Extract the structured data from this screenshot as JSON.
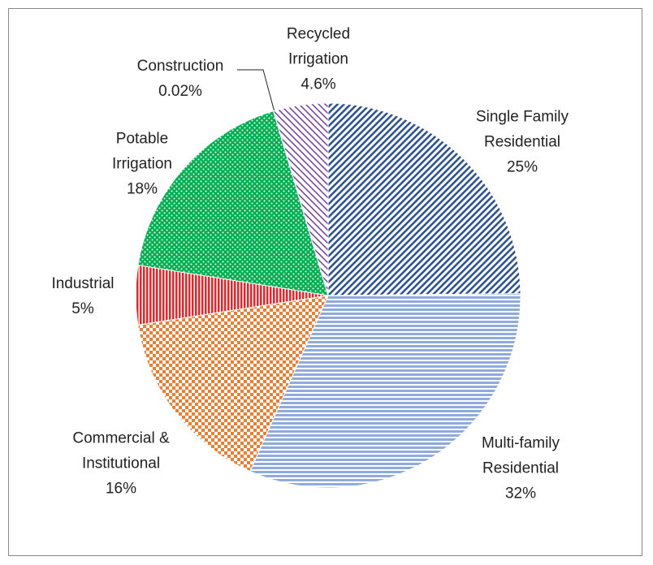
{
  "chart_data": {
    "type": "pie",
    "categories": [
      "Single Family Residential",
      "Multi-family Residential",
      "Commercial & Institutional",
      "Industrial",
      "Potable Irrigation",
      "Construction",
      "Recycled Irrigation"
    ],
    "values": [
      25,
      32,
      16,
      5,
      18,
      0.02,
      4.6
    ],
    "value_labels": [
      "25%",
      "32%",
      "16%",
      "5%",
      "18%",
      "0.02%",
      "4.6%"
    ],
    "colors": [
      "#2f5597",
      "#8faadc",
      "#ed7d31",
      "#e8262a",
      "#00b050",
      "#7f7f7f",
      "#7030a0"
    ],
    "patterns": [
      "diagonal",
      "horizontal",
      "checker",
      "vertical",
      "dots",
      "solid",
      "diagonal-reverse"
    ]
  }
}
